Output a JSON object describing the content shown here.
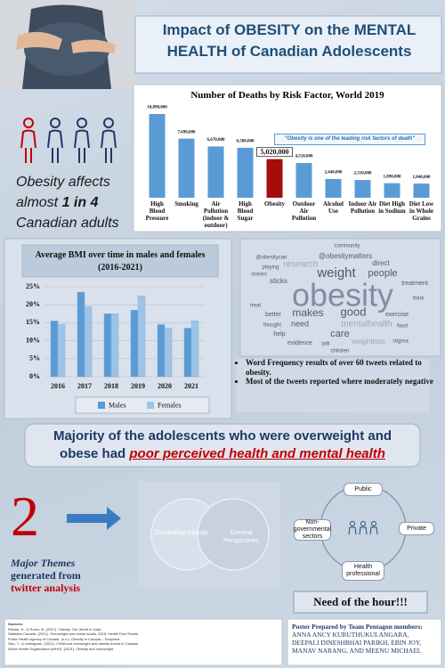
{
  "header": {
    "title": "Impact of OBESITY on the MENTAL HEALTH of Canadian Adolescents"
  },
  "fact": {
    "parts": [
      "Obesity affects almost ",
      "1 in 4",
      " Canadian adults"
    ]
  },
  "chart_data": [
    {
      "type": "bar",
      "title": "Number of Deaths by Risk Factor, World 2019",
      "categories": [
        "High Blood Pressure",
        "Smoking",
        "Air Pollution (indoor & outdoor)",
        "High Blood Sugar",
        "Obesity",
        "Outdoor Air Pollution",
        "Alcohol Use",
        "Indoor Air Pollution",
        "Diet High in Sodium",
        "Diet Low in Whole Grains"
      ],
      "values": [
        10890000,
        7690000,
        6670000,
        6500000,
        5020000,
        4510000,
        2440000,
        2310000,
        1890000,
        1840000
      ],
      "value_labels": [
        "10,890,000",
        "7,690,000",
        "6,670,000",
        "6,500,000",
        "5,020,000",
        "4,510,000",
        "2,440,000",
        "2,310,000",
        "1,890,000",
        "1,840,000"
      ],
      "colors": [
        "#5b9bd5",
        "#5b9bd5",
        "#5b9bd5",
        "#5b9bd5",
        "#a50d0d",
        "#5b9bd5",
        "#5b9bd5",
        "#5b9bd5",
        "#5b9bd5",
        "#5b9bd5"
      ],
      "annotation": "\"Obesity is one of the leading risk factors of death\""
    },
    {
      "type": "grouped_bar",
      "title": "Average BMI over time in males and females (2016-2021)",
      "categories": [
        "2016",
        "2017",
        "2018",
        "2019",
        "2020",
        "2021"
      ],
      "series": [
        {
          "name": "Males",
          "color": "#5b9bd5",
          "values": [
            15.5,
            23.5,
            17.5,
            18.5,
            14.5,
            13.5
          ]
        },
        {
          "name": "Females",
          "color": "#9dc3e6",
          "values": [
            14.5,
            19.5,
            17.5,
            22.5,
            13.5,
            15.5
          ]
        }
      ],
      "ylim": [
        0,
        25
      ],
      "yticks": [
        {
          "value": 0,
          "label": "0%"
        },
        {
          "value": 5,
          "label": "5%"
        },
        {
          "value": 10,
          "label": "10%"
        },
        {
          "value": 15,
          "label": "15%"
        },
        {
          "value": 20,
          "label": "20%"
        },
        {
          "value": 25,
          "label": "25%"
        }
      ],
      "grid": true,
      "legend": "bottom"
    }
  ],
  "word_cloud": {
    "words": [
      "obesity",
      "weight",
      "research",
      "@obesitymatters",
      "people",
      "direct",
      "makes",
      "good",
      "mentalhealth",
      "care",
      "need",
      "exercise",
      "treatment",
      "sticks",
      "stones",
      "help",
      "evidence",
      "weightloss",
      "better",
      "thought",
      "food",
      "stigma",
      "community",
      "children",
      "treat",
      "think",
      "playing",
      "talk",
      "@obesitycan"
    ],
    "bullets": [
      "Word Frequency results of over 60 tweets related to obesity.",
      "Most of the tweets reported where moderately negative"
    ]
  },
  "banner": {
    "parts": [
      "Majority of the adolescents who were overweight and obese had ",
      "poor perceived health and mental health"
    ]
  },
  "themes": {
    "count": "2",
    "parts": [
      "Major Themes",
      "generated from",
      "twitter analysis"
    ],
    "venn": [
      "Combating Obesity",
      "General Perspectives"
    ]
  },
  "stakeholders": {
    "nodes": [
      "Public",
      "Private",
      "Health professional",
      "Non-governmental sectors"
    ],
    "callout": "Need of the hour!!!"
  },
  "sources": {
    "title": "Sources:",
    "items": [
      "Ritchie, H., & Roser, M. (2017). Obesity. Our World in Data.",
      "Statistics Canada. (2021). Overweight and obese adults, 2018. Health Fact Sheets.",
      "Public Health Agency of Canada. (n.d.). Obesity in Canada – Snapshot.",
      "Gao, Y., & colleagues. (2021). Childhood overweight and obesity trends in Canada.",
      "World Health Organization (WHO). (2021). Obesity and overweight."
    ]
  },
  "credits": {
    "label": "Poster Prepared by Team Pentagon members:",
    "names": "ANNA ANCY KURUTHUKULANGARA, DEEPALI DINESHBHAI PARIKH, EBIN JOY, MANAV NARANG, AND MEENU MICHAEL"
  }
}
